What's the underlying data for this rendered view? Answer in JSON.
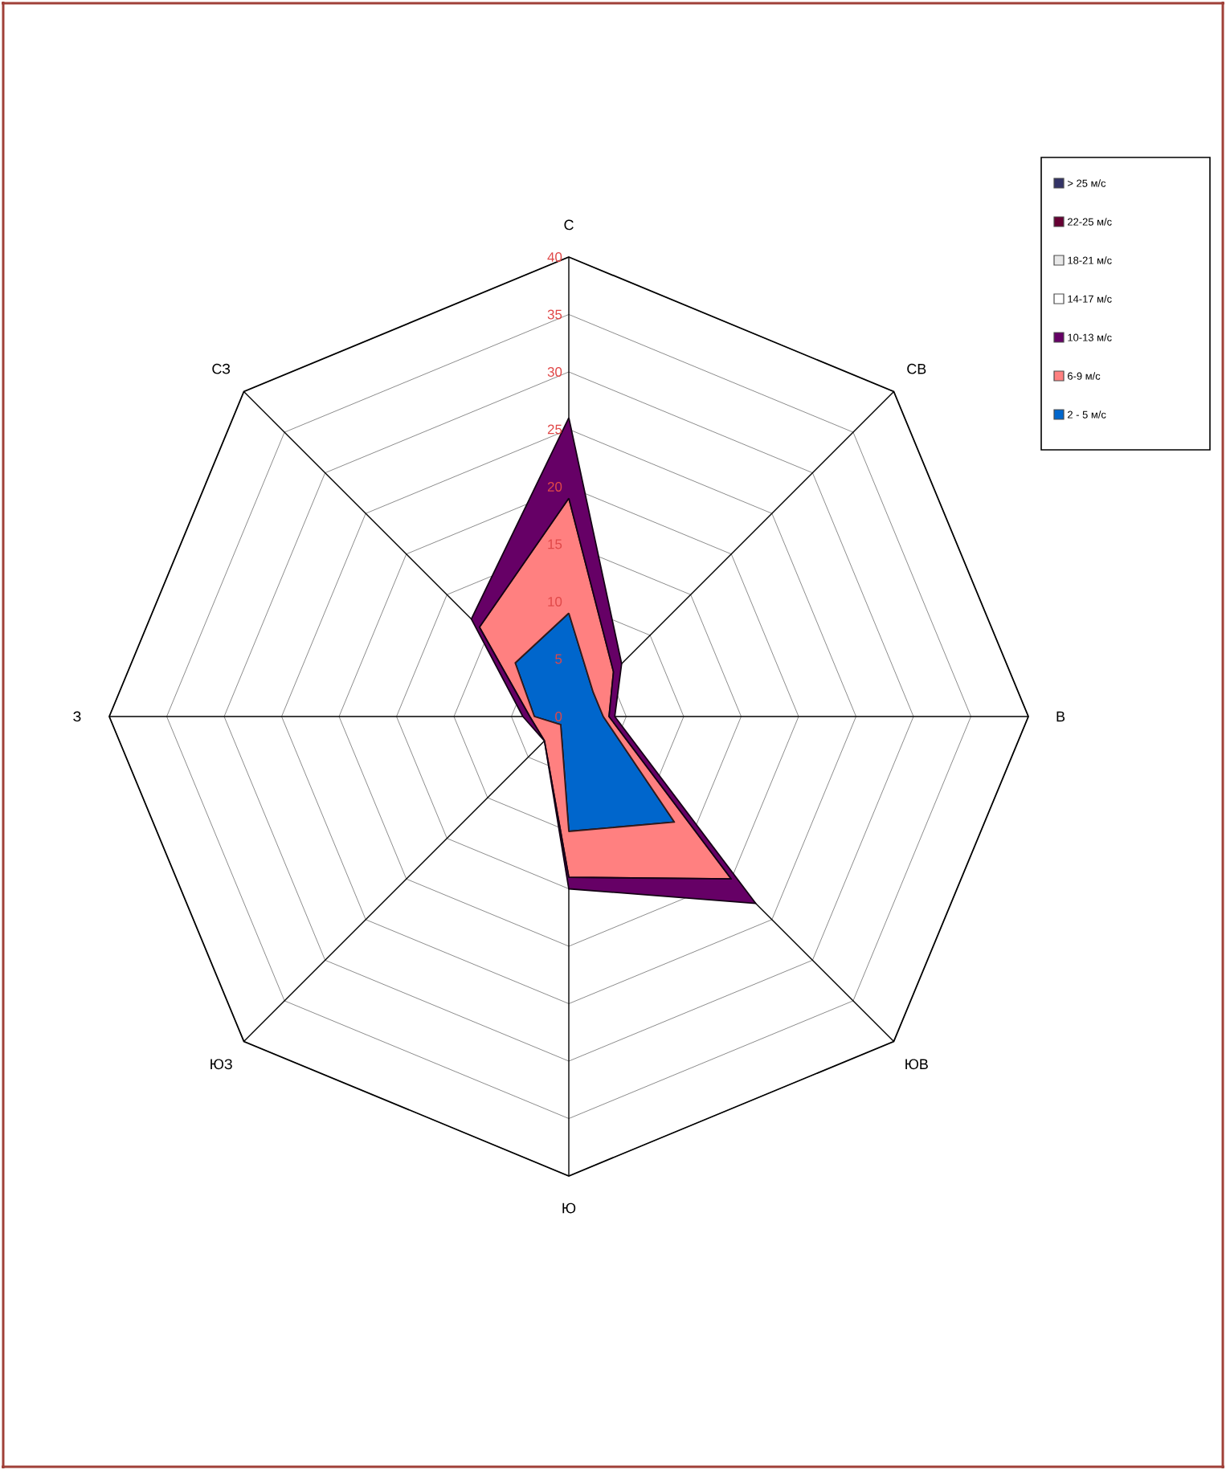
{
  "chart_data": {
    "type": "radar",
    "categories": [
      "С",
      "СВ",
      "В",
      "ЮВ",
      "Ю",
      "ЮЗ",
      "З",
      "СЗ"
    ],
    "ylim": [
      0,
      40
    ],
    "yticks": [
      0,
      5,
      10,
      15,
      20,
      25,
      30,
      35,
      40
    ],
    "grid": true,
    "legend": "top right",
    "series": [
      {
        "name": "2 - 5 м/с",
        "color": "#0066cc",
        "values": [
          9,
          3,
          3,
          13,
          10,
          1,
          3,
          6.6
        ]
      },
      {
        "name": "6-9 м/с",
        "color": "#ff8080",
        "values": [
          19,
          5.5,
          3.5,
          20,
          14,
          3,
          3.4,
          11
        ]
      },
      {
        "name": "10-13 м/с",
        "color": "#660066",
        "values": [
          26,
          6.5,
          4,
          23,
          15,
          3,
          4,
          12
        ]
      },
      {
        "name": "14-17 м/с",
        "color": "#ffffff",
        "values": [
          null,
          null,
          null,
          null,
          null,
          null,
          null,
          null
        ]
      },
      {
        "name": "18-21 м/с",
        "color": "#e8e8e8",
        "values": [
          null,
          null,
          null,
          null,
          null,
          null,
          null,
          null
        ]
      },
      {
        "name": "22-25 м/с",
        "color": "#660033",
        "values": [
          null,
          null,
          null,
          null,
          null,
          null,
          null,
          null
        ]
      },
      {
        "name": "> 25 м/с",
        "color": "#333366",
        "values": [
          null,
          null,
          null,
          null,
          null,
          null,
          null,
          null
        ]
      }
    ]
  }
}
